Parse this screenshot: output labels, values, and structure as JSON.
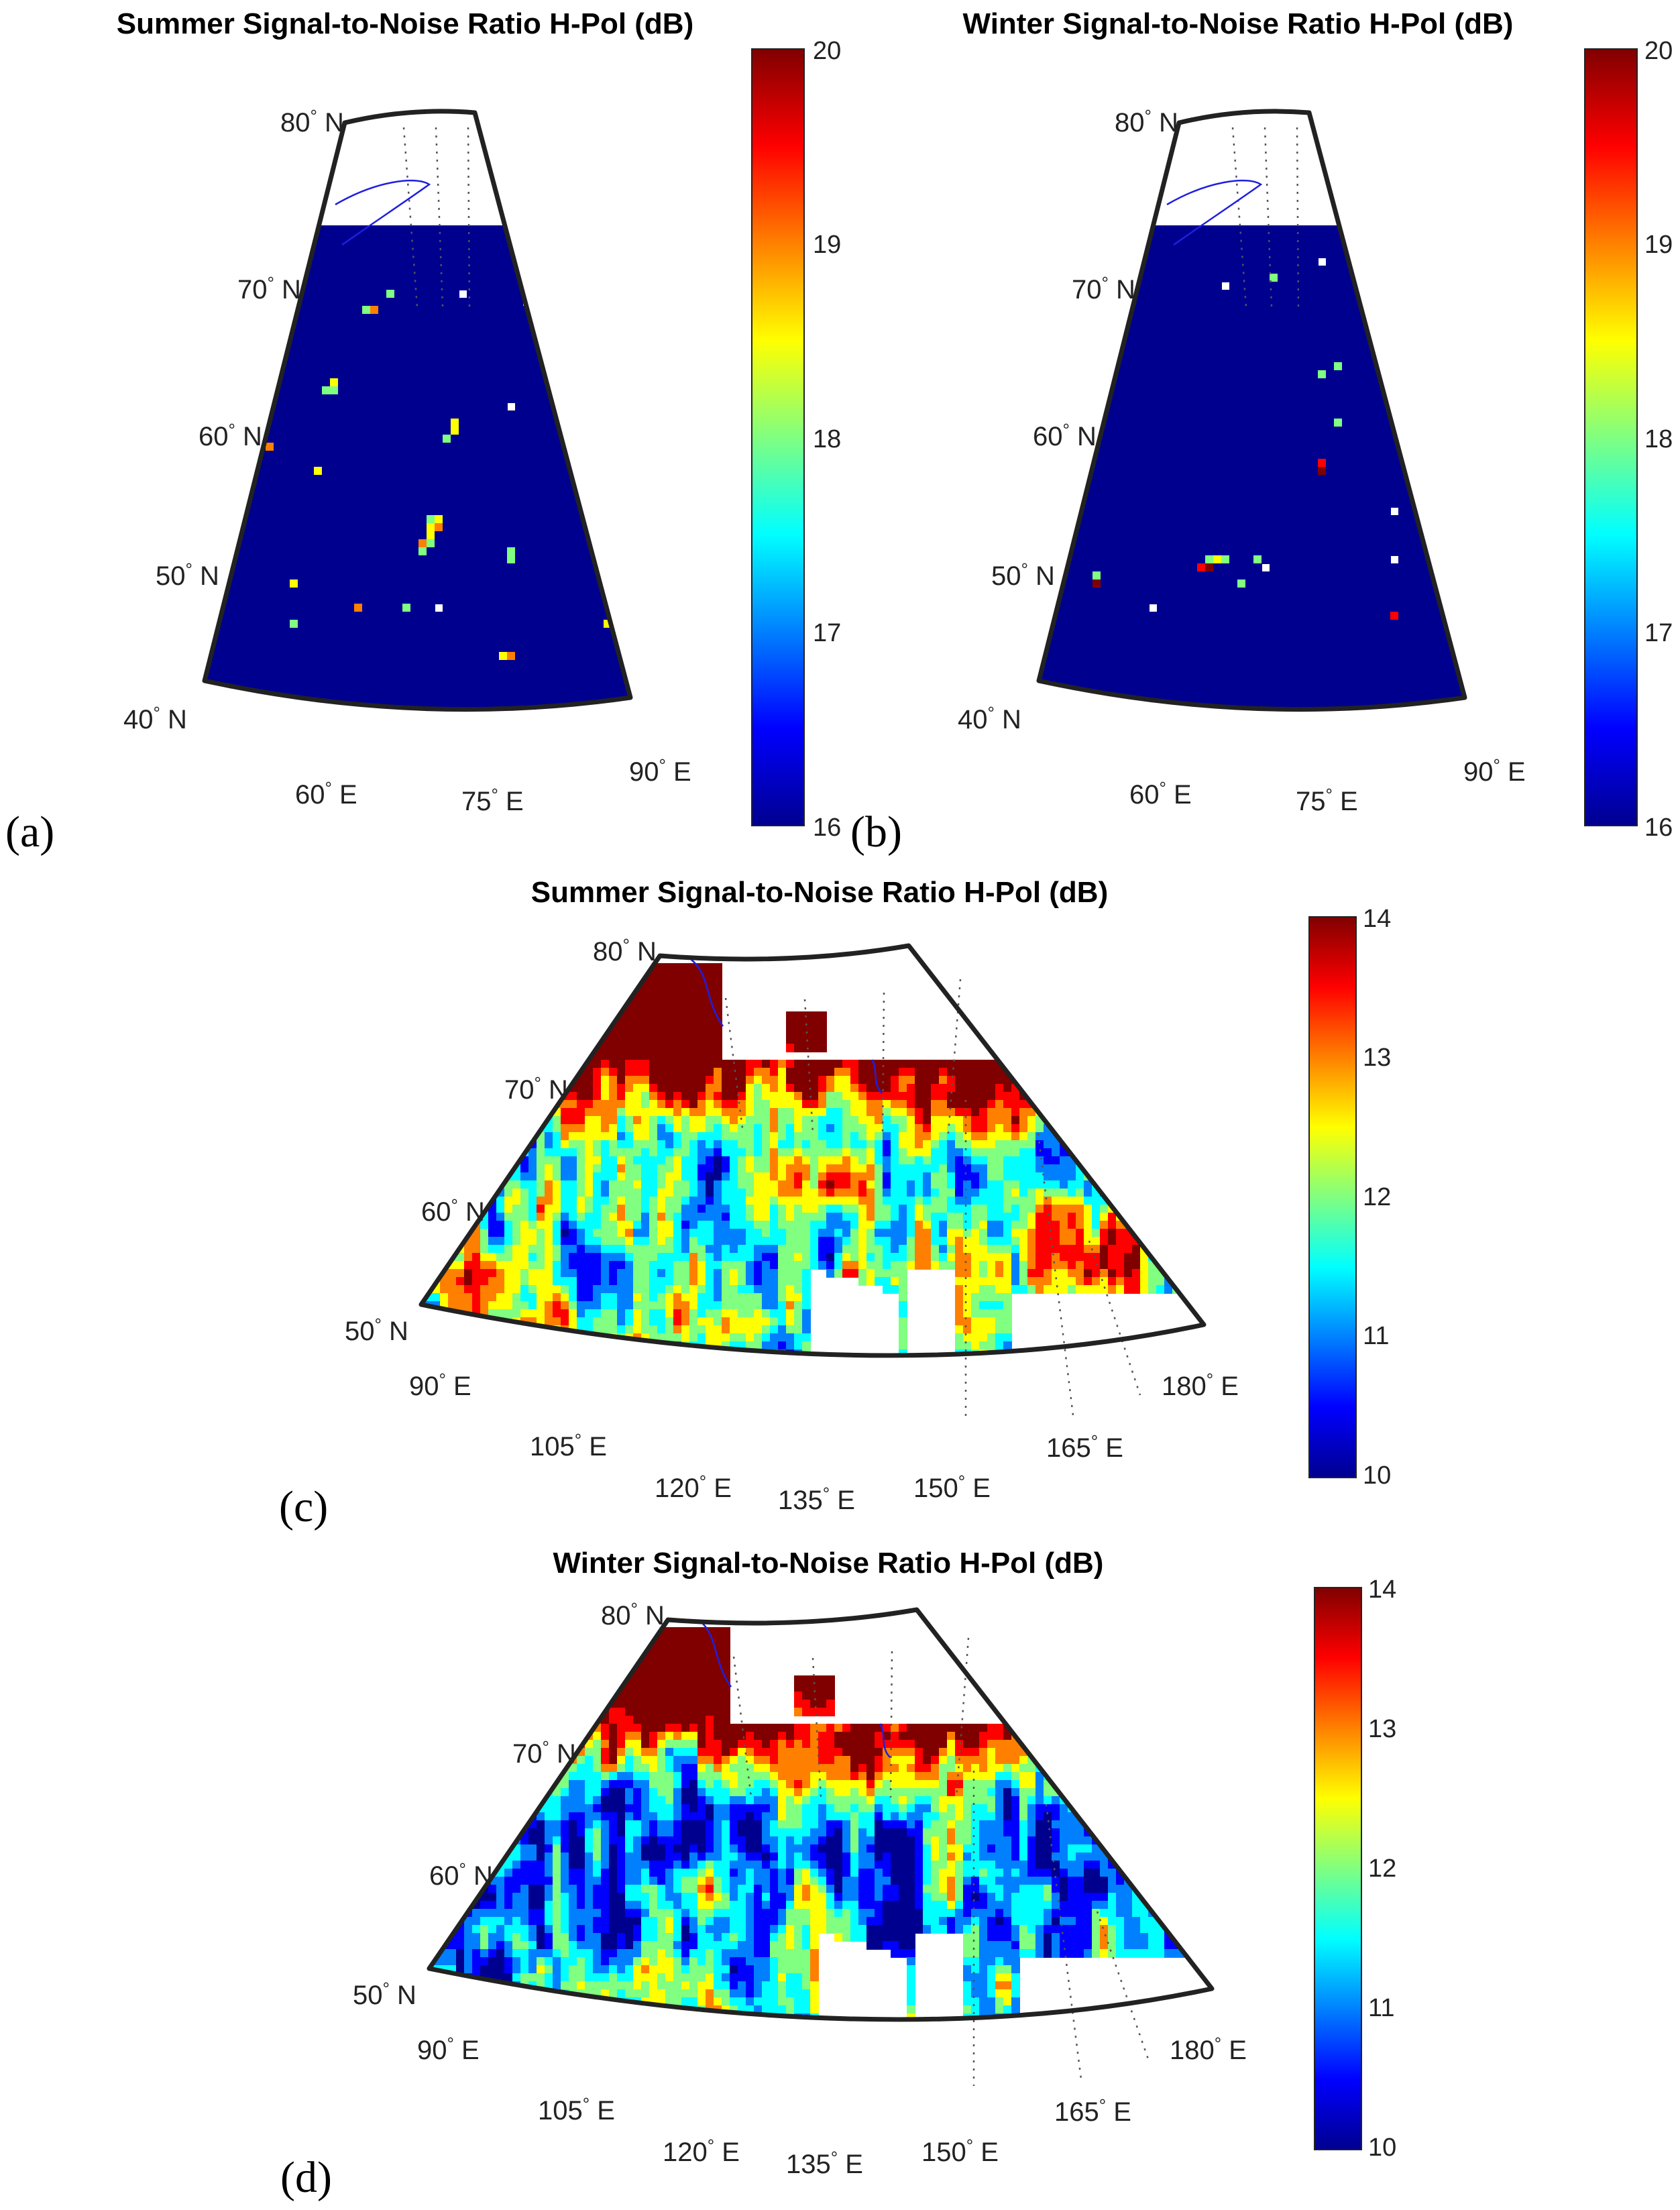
{
  "figure": {
    "panels": [
      {
        "id": "a",
        "label": "(a)",
        "title": "Summer Signal-to-Noise Ratio H-Pol (dB)",
        "lat_labels": [
          "80",
          "70",
          "60",
          "50",
          "40"
        ],
        "lat_suffix": "N",
        "lon_labels": [
          "60",
          "75",
          "90"
        ],
        "lon_suffix": "E",
        "colorbar": {
          "min": 16,
          "max": 20,
          "ticks": [
            "20",
            "19",
            "18",
            "17",
            "16"
          ]
        }
      },
      {
        "id": "b",
        "label": "(b)",
        "title": "Winter Signal-to-Noise Ratio H-Pol (dB)",
        "lat_labels": [
          "80",
          "70",
          "60",
          "50",
          "40"
        ],
        "lat_suffix": "N",
        "lon_labels": [
          "60",
          "75",
          "90"
        ],
        "lon_suffix": "E",
        "colorbar": {
          "min": 16,
          "max": 20,
          "ticks": [
            "20",
            "19",
            "18",
            "17",
            "16"
          ]
        }
      },
      {
        "id": "c",
        "label": "(c)",
        "title": "Summer Signal-to-Noise Ratio H-Pol (dB)",
        "lat_labels": [
          "80",
          "70",
          "60",
          "50"
        ],
        "lat_suffix": "N",
        "lon_labels": [
          "90",
          "105",
          "120",
          "135",
          "150",
          "165",
          "180"
        ],
        "lon_suffix": "E",
        "colorbar": {
          "min": 10,
          "max": 14,
          "ticks": [
            "14",
            "13",
            "12",
            "11",
            "10"
          ]
        }
      },
      {
        "id": "d",
        "label": "(d)",
        "title": "Winter Signal-to-Noise Ratio H-Pol (dB)",
        "lat_labels": [
          "80",
          "70",
          "60",
          "50"
        ],
        "lat_suffix": "N",
        "lon_labels": [
          "90",
          "105",
          "120",
          "135",
          "150",
          "165",
          "180"
        ],
        "lon_suffix": "E",
        "colorbar": {
          "min": 10,
          "max": 14,
          "ticks": [
            "14",
            "13",
            "12",
            "11",
            "10"
          ]
        }
      }
    ],
    "deg_symbol": "°",
    "colormap": [
      "#00008f",
      "#0000ff",
      "#0080ff",
      "#00ffff",
      "#80ff80",
      "#ffff00",
      "#ff8000",
      "#ff0000",
      "#800000"
    ],
    "colors": {
      "frame": "#222222",
      "coastline": "#1f1fe0",
      "graticule": "#555555"
    }
  }
}
